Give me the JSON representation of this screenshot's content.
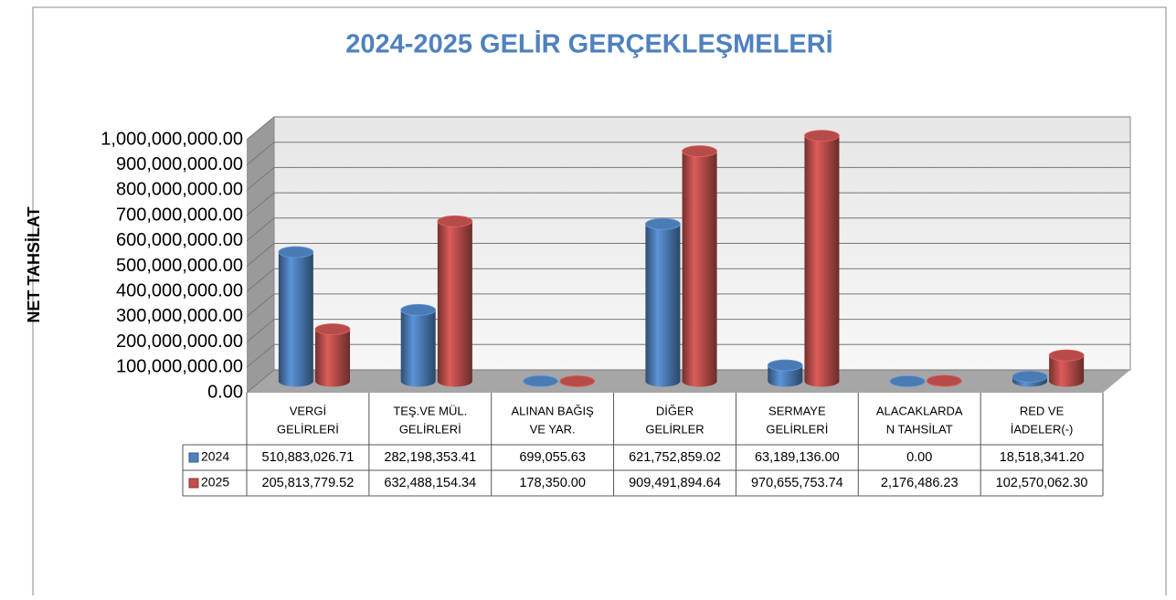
{
  "chart_data": {
    "type": "bar3d",
    "title": "2024-2025  GELİR GERÇEKLEŞMELERİ",
    "y_label": "NET TAHSİLAT",
    "categories": [
      [
        "VERGİ",
        "GELİRLERİ"
      ],
      [
        "TEŞ.VE MÜL.",
        "GELİRLERİ"
      ],
      [
        "ALINAN BAĞIŞ",
        "VE YAR."
      ],
      [
        "DİĞER",
        "GELİRLER"
      ],
      [
        "SERMAYE",
        "GELİRLERİ"
      ],
      [
        "ALACAKLARDA",
        "N TAHSİLAT"
      ],
      [
        "RED VE",
        "İADELER(-)"
      ]
    ],
    "series": [
      {
        "name": "2024",
        "color": "#4f81bd",
        "values": [
          510883026.71,
          282198353.41,
          699055.63,
          621752859.02,
          63189136.0,
          0.0,
          18518341.2
        ],
        "value_labels": [
          "510,883,026.71",
          "282,198,353.41",
          "699,055.63",
          "621,752,859.02",
          "63,189,136.00",
          "0.00",
          "18,518,341.20"
        ]
      },
      {
        "name": "2025",
        "color": "#c0504d",
        "values": [
          205813779.52,
          632488154.34,
          178350.0,
          909491894.64,
          970655753.74,
          2176486.23,
          102570062.3
        ],
        "value_labels": [
          "205,813,779.52",
          "632,488,154.34",
          "178,350.00",
          "909,491,894.64",
          "970,655,753.74",
          "2,176,486.23",
          "102,570,062.30"
        ]
      }
    ],
    "ylim": [
      0,
      1000000000
    ],
    "yticks": [
      {
        "value": 0,
        "label": "0.00"
      },
      {
        "value": 100000000,
        "label": "100,000,000.00"
      },
      {
        "value": 200000000,
        "label": "200,000,000.00"
      },
      {
        "value": 300000000,
        "label": "300,000,000.00"
      },
      {
        "value": 400000000,
        "label": "400,000,000.00"
      },
      {
        "value": 500000000,
        "label": "500,000,000.00"
      },
      {
        "value": 600000000,
        "label": "600,000,000.00"
      },
      {
        "value": 700000000,
        "label": "700,000,000.00"
      },
      {
        "value": 800000000,
        "label": "800,000,000.00"
      },
      {
        "value": 900000000,
        "label": "900,000,000.00"
      },
      {
        "value": 1000000000,
        "label": "1,000,000,000.00"
      }
    ],
    "grid": true
  }
}
